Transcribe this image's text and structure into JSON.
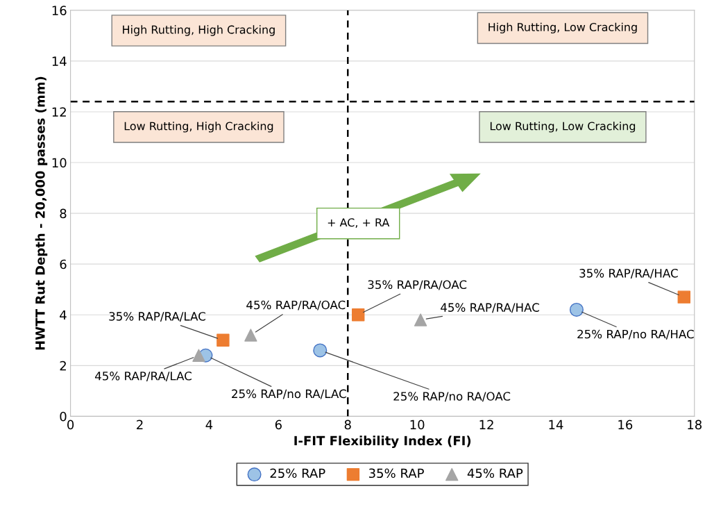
{
  "chart_data": {
    "type": "scatter",
    "xlabel": "I-FIT Flexibility Index (FI)",
    "ylabel": "HWTT Rut Depth - 20,000 passes (mm)",
    "xlim": [
      0,
      18
    ],
    "xticks": [
      0,
      2,
      4,
      6,
      8,
      10,
      12,
      14,
      16,
      18
    ],
    "ylim": [
      0,
      16
    ],
    "yticks": [
      0,
      2,
      4,
      6,
      8,
      10,
      12,
      14,
      16
    ],
    "grid": "y",
    "legend": "bottom",
    "series": [
      {
        "name": "25% RAP",
        "color": "#9dc3e6",
        "marker": "circle",
        "x": [
          3.9,
          7.2,
          14.6
        ],
        "values": [
          2.4,
          2.6,
          4.2
        ]
      },
      {
        "name": "35% RAP",
        "color": "#ed7d31",
        "marker": "square",
        "x": [
          4.4,
          8.3,
          17.7
        ],
        "values": [
          3.0,
          4.0,
          4.7
        ]
      },
      {
        "name": "45% RAP",
        "color": "#a5a5a5",
        "marker": "triangle",
        "x": [
          3.7,
          5.2,
          10.1
        ],
        "values": [
          2.4,
          3.2,
          3.8
        ]
      }
    ],
    "ref_lines": [
      {
        "axis": "x",
        "value": 8,
        "line_style": "dashed",
        "color": "#000000"
      },
      {
        "axis": "y",
        "value": 12.4,
        "line_style": "dashed",
        "color": "#000000"
      }
    ],
    "annotations": [
      "High Rutting, High Cracking",
      "High Rutting, Low Cracking",
      "Low Rutting, High Cracking",
      "Low Rutting, Low Cracking",
      "+ AC, + RA",
      {
        "text": "35% RAP/RA/LAC",
        "x": 4.4,
        "y": 3.0
      },
      {
        "text": "45% RAP/RA/OAC",
        "x": 5.2,
        "y": 3.2
      },
      {
        "text": "35% RAP/RA/OAC",
        "x": 8.3,
        "y": 4.0
      },
      {
        "text": "45% RAP/RA/HAC",
        "x": 10.1,
        "y": 3.8
      },
      {
        "text": "35% RAP/RA/HAC",
        "x": 17.7,
        "y": 4.7
      },
      {
        "text": "45% RAP/RA/LAC",
        "x": 3.7,
        "y": 2.4
      },
      {
        "text": "25% RAP/no RA/LAC",
        "x": 3.9,
        "y": 2.4
      },
      {
        "text": "25% RAP/no RA/OAC",
        "x": 7.2,
        "y": 2.6
      },
      {
        "text": "25% RAP/no RA/HAC",
        "x": 14.6,
        "y": 4.2
      }
    ]
  }
}
